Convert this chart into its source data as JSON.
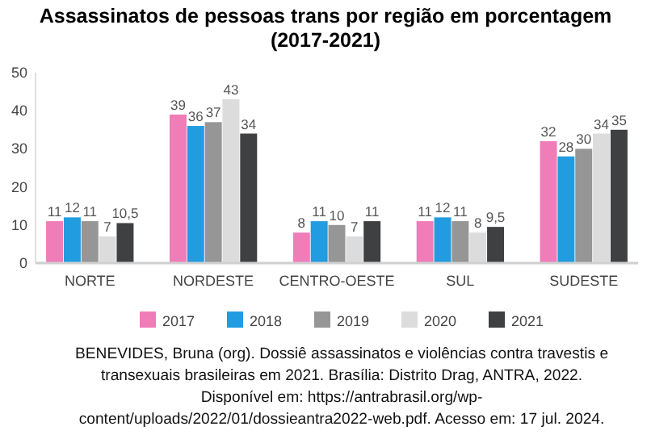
{
  "chart_data": {
    "type": "bar",
    "title": "Assassinatos de pessoas trans por região em porcentagem (2017-2021)",
    "categories": [
      "NORTE",
      "NORDESTE",
      "CENTRO-OESTE",
      "SUL",
      "SUDESTE"
    ],
    "series": [
      {
        "name": "2017",
        "color": "#f07cb8",
        "values": [
          11,
          39,
          8,
          11,
          32
        ],
        "value_labels": [
          "11",
          "39",
          "8",
          "11",
          "32"
        ]
      },
      {
        "name": "2018",
        "color": "#219ce0",
        "values": [
          12,
          36,
          11,
          12,
          28
        ],
        "value_labels": [
          "12",
          "36",
          "11",
          "12",
          "28"
        ]
      },
      {
        "name": "2019",
        "color": "#969696",
        "values": [
          11,
          37,
          10,
          11,
          30
        ],
        "value_labels": [
          "11",
          "37",
          "10",
          "11",
          "30"
        ]
      },
      {
        "name": "2020",
        "color": "#dcdcdc",
        "values": [
          7,
          43,
          7,
          8,
          34
        ],
        "value_labels": [
          "7",
          "43",
          "7",
          "8",
          "34"
        ]
      },
      {
        "name": "2021",
        "color": "#3e4042",
        "values": [
          10.5,
          34,
          11,
          9.5,
          35
        ],
        "value_labels": [
          "10,5",
          "34",
          "11",
          "9,5",
          "35"
        ]
      }
    ],
    "ylim": [
      0,
      50
    ],
    "yticks": [
      0,
      10,
      20,
      30,
      40,
      50
    ],
    "grid": false,
    "legend": "bottom",
    "annotations": [
      "BENEVIDES, Bruna (org). Dossiê assassinatos e violências contra travestis e",
      "transexuais brasileiras em 2021. Brasília: Distrito Drag, ANTRA, 2022.",
      "Disponível em: https://antrabrasil.org/wp-",
      "content/uploads/2022/01/dossieantra2022-web.pdf. Acesso em: 17 jul. 2024."
    ]
  }
}
